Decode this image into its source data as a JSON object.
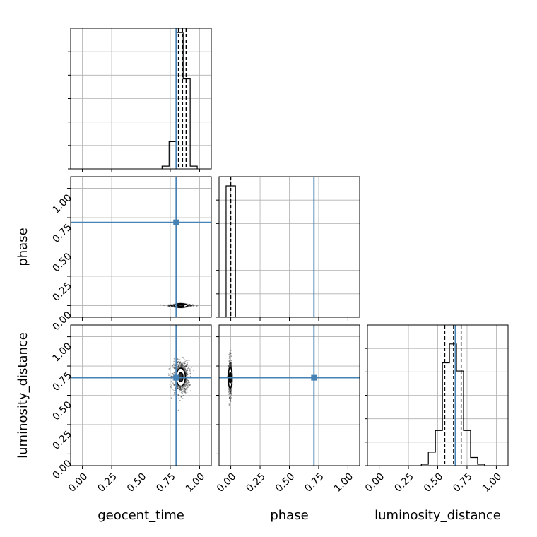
{
  "colors": {
    "truth": "#4682b4",
    "hist": "#000000",
    "grid": "#b0b0b0",
    "quantile": "#000000"
  },
  "chart_data": {
    "type": "corner",
    "parameters": [
      "geocent_time",
      "phase",
      "luminosity_distance"
    ],
    "tick_labels": [
      "0.00",
      "0.25",
      "0.50",
      "0.75",
      "1.00"
    ],
    "ticks": [
      0,
      0.25,
      0.5,
      0.75,
      1.0
    ],
    "range": [
      -0.1,
      1.1
    ],
    "grid": true,
    "truths": {
      "geocent_time": 0.8,
      "phase": 0.71,
      "luminosity_distance": 0.65
    },
    "quantiles": {
      "geocent_time": [
        0.82,
        0.855,
        0.885
      ],
      "phase": [
        0.0
      ],
      "luminosity_distance": [
        0.56,
        0.635,
        0.7
      ]
    },
    "histograms": {
      "geocent_time": {
        "bins": [
          [
            0.68,
            0.74,
            0.02
          ],
          [
            0.74,
            0.8,
            0.2
          ],
          [
            0.8,
            0.86,
            1.0
          ],
          [
            0.86,
            0.92,
            0.66
          ],
          [
            0.92,
            0.98,
            0.02
          ]
        ],
        "ylim": [
          0,
          1.03
        ]
      },
      "phase": {
        "bins": [
          [
            -0.04,
            0.04,
            1.0
          ]
        ],
        "ylim": [
          0,
          1.07
        ]
      },
      "luminosity_distance": {
        "bins": [
          [
            0.36,
            0.42,
            0.005
          ],
          [
            0.42,
            0.48,
            0.05
          ],
          [
            0.48,
            0.54,
            0.13
          ],
          [
            0.54,
            0.6,
            0.38
          ],
          [
            0.6,
            0.66,
            0.45
          ],
          [
            0.66,
            0.72,
            0.35
          ],
          [
            0.72,
            0.78,
            0.13
          ],
          [
            0.78,
            0.84,
            0.03
          ],
          [
            0.84,
            0.9,
            0.005
          ]
        ],
        "ylim": [
          0,
          0.52
        ]
      }
    },
    "scatter": [
      {
        "x": "geocent_time",
        "y": "phase",
        "center": [
          0.84,
          0.0
        ],
        "spread": [
          0.05,
          0.005
        ],
        "n": 350
      },
      {
        "x": "geocent_time",
        "y": "luminosity_distance",
        "center": [
          0.84,
          0.655
        ],
        "spread": [
          0.035,
          0.07
        ],
        "n": 700
      },
      {
        "x": "phase",
        "y": "luminosity_distance",
        "center": [
          -0.005,
          0.65
        ],
        "spread": [
          0.006,
          0.08
        ],
        "n": 450
      }
    ]
  }
}
